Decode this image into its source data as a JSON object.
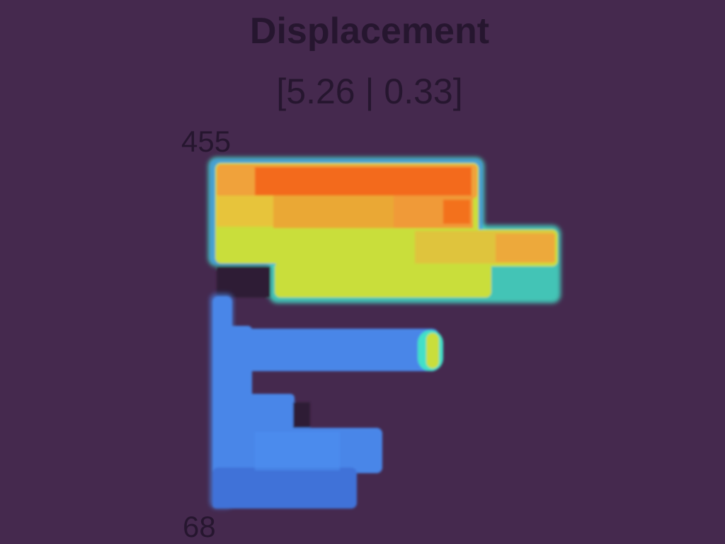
{
  "viewer": {
    "title": "Displacement",
    "range_label": "[5.26 | 0.33]",
    "scale_max_label": "455",
    "scale_min_label": "68"
  },
  "colors": {
    "background": "#45294e",
    "text": "#26162f",
    "high": "#f36a1a",
    "upper_mid": "#f0a23a",
    "mid": "#c9de3a",
    "cyan_edge": "#42e0c8",
    "low": "#4a86e8",
    "low_dark": "#3f72d8",
    "shadow": "#2e1a36"
  },
  "icons": {
    "heatmap": "displacement-heatmap-icon"
  }
}
